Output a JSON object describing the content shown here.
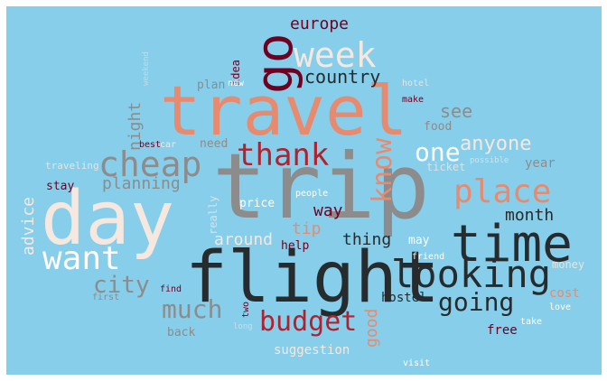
{
  "palette": {
    "background": "#87ceeb",
    "white": "#ffffff",
    "cream": "#f6e8df",
    "salmon": "#e88a6e",
    "red": "#b2212e",
    "maroon": "#6f0020",
    "gray": "#8c8c8c",
    "dark": "#262b2e"
  },
  "words": [
    {
      "text": "trip",
      "color": "gray"
    },
    {
      "text": "flight",
      "color": "dark"
    },
    {
      "text": "day",
      "color": "cream"
    },
    {
      "text": "travel",
      "color": "salmon"
    },
    {
      "text": "time",
      "color": "dark"
    },
    {
      "text": "looking",
      "color": "dark"
    },
    {
      "text": "place",
      "color": "salmon"
    },
    {
      "text": "want",
      "color": "white"
    },
    {
      "text": "cheap",
      "color": "gray"
    },
    {
      "text": "go",
      "color": "maroon"
    },
    {
      "text": "week",
      "color": "cream"
    },
    {
      "text": "thank",
      "color": "red"
    },
    {
      "text": "budget",
      "color": "red"
    },
    {
      "text": "much",
      "color": "gray"
    },
    {
      "text": "going",
      "color": "dark"
    },
    {
      "text": "city",
      "color": "gray"
    },
    {
      "text": "know",
      "color": "salmon"
    },
    {
      "text": "one",
      "color": "white"
    },
    {
      "text": "anyone",
      "color": "cream"
    },
    {
      "text": "country",
      "color": "dark"
    },
    {
      "text": "europe",
      "color": "maroon"
    },
    {
      "text": "month",
      "color": "dark"
    },
    {
      "text": "thing",
      "color": "dark"
    },
    {
      "text": "around",
      "color": "cream"
    },
    {
      "text": "planning",
      "color": "gray"
    },
    {
      "text": "night",
      "color": "gray"
    },
    {
      "text": "see",
      "color": "gray"
    },
    {
      "text": "way",
      "color": "maroon"
    },
    {
      "text": "tip",
      "color": "salmon"
    },
    {
      "text": "advice",
      "color": "cream"
    },
    {
      "text": "good",
      "color": "salmon"
    },
    {
      "text": "hostel",
      "color": "dark"
    },
    {
      "text": "cost",
      "color": "salmon"
    },
    {
      "text": "free",
      "color": "maroon"
    },
    {
      "text": "suggestion",
      "color": "cream"
    },
    {
      "text": "year",
      "color": "gray"
    },
    {
      "text": "stay",
      "color": "maroon"
    },
    {
      "text": "food",
      "color": "gray"
    },
    {
      "text": "price",
      "color": "white"
    },
    {
      "text": "need",
      "color": "gray"
    },
    {
      "text": "plan",
      "color": "gray"
    },
    {
      "text": "back",
      "color": "gray"
    },
    {
      "text": "help",
      "color": "maroon"
    },
    {
      "text": "may",
      "color": "white"
    },
    {
      "text": "traveling",
      "color": "cream"
    },
    {
      "text": "money",
      "color": "cream"
    },
    {
      "text": "idea",
      "color": "maroon"
    },
    {
      "text": "really",
      "color": "cream"
    },
    {
      "text": "ticket",
      "color": "cream"
    },
    {
      "text": "friend",
      "color": "white"
    },
    {
      "text": "make",
      "color": "maroon"
    },
    {
      "text": "hotel",
      "color": "cream"
    },
    {
      "text": "new",
      "color": "white"
    },
    {
      "text": "best",
      "color": "maroon"
    },
    {
      "text": "car",
      "color": "cream"
    },
    {
      "text": "people",
      "color": "white"
    },
    {
      "text": "find",
      "color": "maroon"
    },
    {
      "text": "first",
      "color": "gray"
    },
    {
      "text": "two",
      "color": "maroon"
    },
    {
      "text": "love",
      "color": "white"
    },
    {
      "text": "take",
      "color": "white"
    },
    {
      "text": "visit",
      "color": "white"
    },
    {
      "text": "possible",
      "color": "cream"
    },
    {
      "text": "long",
      "color": "cream"
    },
    {
      "text": "weekend",
      "color": "cream"
    }
  ]
}
